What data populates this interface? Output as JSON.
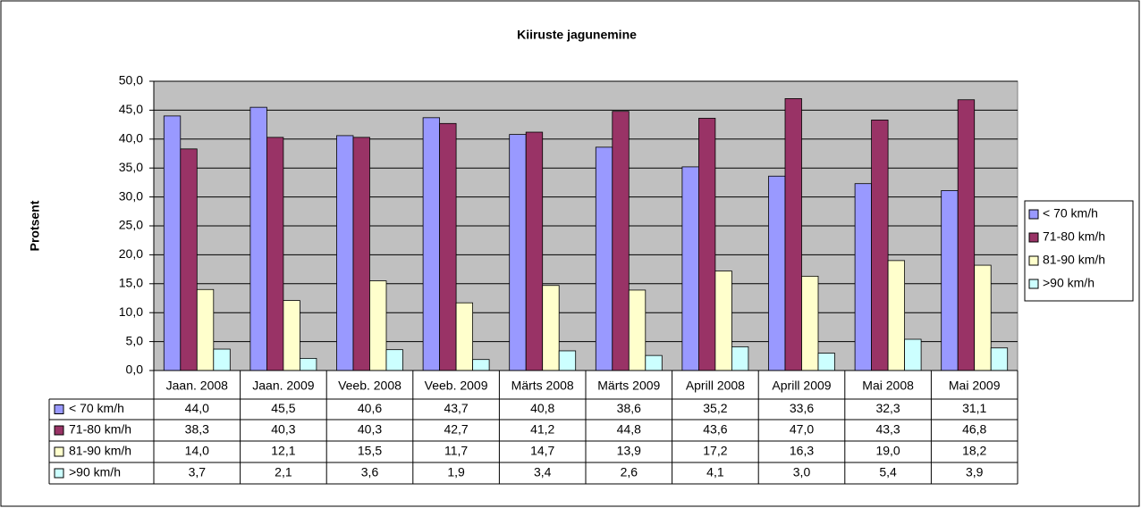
{
  "chart_data": {
    "type": "bar",
    "title": "Kiiruste jagunemine",
    "y_label": "Protsent",
    "categories": [
      "Jaan. 2008",
      "Jaan. 2009",
      "Veeb. 2008",
      "Veeb. 2009",
      "Märts 2008",
      "Märts 2009",
      "Aprill 2008",
      "Aprill 2009",
      "Mai 2008",
      "Mai 2009"
    ],
    "series": [
      {
        "name": "< 70 km/h",
        "color": "#9999ff",
        "values": [
          44.0,
          45.5,
          40.6,
          43.7,
          40.8,
          38.6,
          35.2,
          33.6,
          32.3,
          31.1
        ],
        "value_labels": [
          "44,0",
          "45,5",
          "40,6",
          "43,7",
          "40,8",
          "38,6",
          "35,2",
          "33,6",
          "32,3",
          "31,1"
        ]
      },
      {
        "name": "71-80 km/h",
        "color": "#993366",
        "values": [
          38.3,
          40.3,
          40.3,
          42.7,
          41.2,
          44.8,
          43.6,
          47.0,
          43.3,
          46.8
        ],
        "value_labels": [
          "38,3",
          "40,3",
          "40,3",
          "42,7",
          "41,2",
          "44,8",
          "43,6",
          "47,0",
          "43,3",
          "46,8"
        ]
      },
      {
        "name": "81-90 km/h",
        "color": "#ffffcc",
        "values": [
          14.0,
          12.1,
          15.5,
          11.7,
          14.7,
          13.9,
          17.2,
          16.3,
          19.0,
          18.2
        ],
        "value_labels": [
          "14,0",
          "12,1",
          "15,5",
          "11,7",
          "14,7",
          "13,9",
          "17,2",
          "16,3",
          "19,0",
          "18,2"
        ]
      },
      {
        "name": ">90 km/h",
        "color": "#ccffff",
        "values": [
          3.7,
          2.1,
          3.6,
          1.9,
          3.4,
          2.6,
          4.1,
          3.0,
          5.4,
          3.9
        ],
        "value_labels": [
          "3,7",
          "2,1",
          "3,6",
          "1,9",
          "3,4",
          "2,6",
          "4,1",
          "3,0",
          "5,4",
          "3,9"
        ]
      }
    ],
    "ylim": [
      0,
      50
    ],
    "yticks": [
      {
        "value": 0,
        "label": "0,0"
      },
      {
        "value": 5,
        "label": "5,0"
      },
      {
        "value": 10,
        "label": "10,0"
      },
      {
        "value": 15,
        "label": "15,0"
      },
      {
        "value": 20,
        "label": "20,0"
      },
      {
        "value": 25,
        "label": "25,0"
      },
      {
        "value": 30,
        "label": "30,0"
      },
      {
        "value": 35,
        "label": "35,0"
      },
      {
        "value": 40,
        "label": "40,0"
      },
      {
        "value": 45,
        "label": "45,0"
      },
      {
        "value": 50,
        "label": "50,0"
      }
    ],
    "grid": true,
    "plot_background": "#c0c0c0",
    "legend": "right"
  }
}
